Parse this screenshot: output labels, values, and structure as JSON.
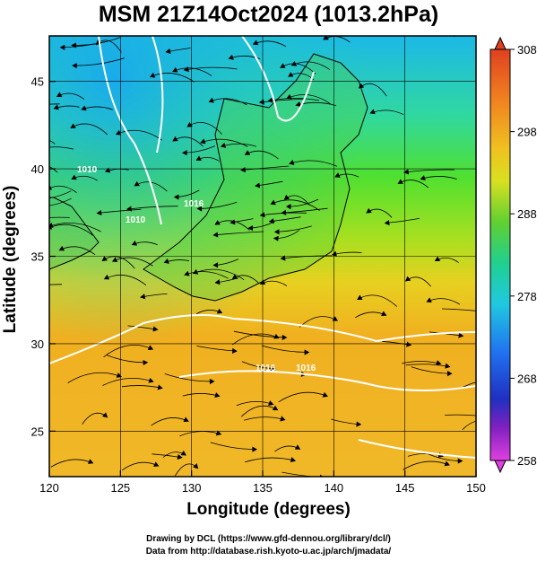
{
  "title": "MSM 21Z14Oct2024 (1013.2hPa)",
  "chart_data": {
    "type": "heatmap",
    "title": "MSM 21Z14Oct2024 (1013.2hPa)",
    "xlabel": "Longitude (degrees)",
    "ylabel": "Latitude  (degrees)",
    "xlim": [
      120,
      150
    ],
    "ylim": [
      22.4,
      47.6
    ],
    "x_ticks": [
      "120",
      "125",
      "130",
      "135",
      "140",
      "145",
      "150"
    ],
    "y_ticks": [
      "25",
      "30",
      "35",
      "40",
      "45"
    ],
    "grid": true,
    "colorbar": {
      "range": [
        258,
        308
      ],
      "ticks": [
        "308",
        "298",
        "288",
        "278",
        "268",
        "258"
      ],
      "colors": [
        "#e040e0",
        "#2020c0",
        "#2080ff",
        "#20e0e0",
        "#20d060",
        "#a0e020",
        "#f0e020",
        "#f0a020",
        "#e03020"
      ]
    },
    "contour_labels": [
      "1010",
      "1010",
      "1016",
      "1016",
      "1016"
    ],
    "overlay": "streamlines"
  },
  "credits": {
    "line1": "Drawing by DCL (https://www.gfd-dennou.org/library/dcl/)",
    "line2": "Data from http://database.rish.kyoto-u.ac.jp/arch/jmadata/"
  }
}
